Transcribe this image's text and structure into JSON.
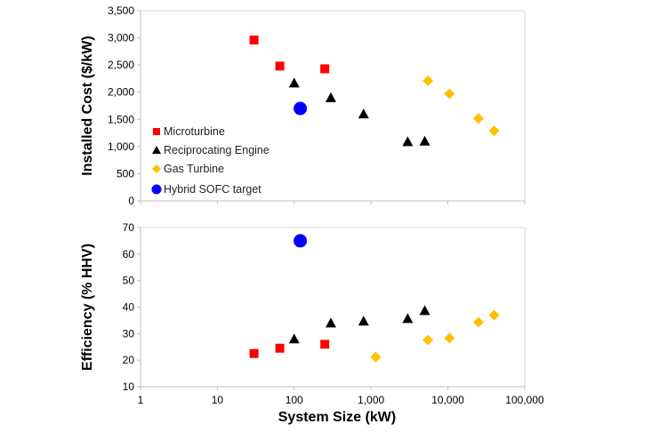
{
  "chart_data": [
    {
      "type": "scatter",
      "title": "",
      "xlabel": "",
      "ylabel": "Installed Cost ($/kW)",
      "xscale": "log",
      "xlim": [
        1,
        100000
      ],
      "ylim": [
        0,
        3500
      ],
      "yticks": [
        0,
        500,
        1000,
        1500,
        2000,
        2500,
        3000,
        3500
      ],
      "ytick_labels": [
        "0",
        "500",
        "1,000",
        "1,500",
        "2,000",
        "2,500",
        "3,000",
        "3,500"
      ],
      "grid": false,
      "legend_position": "bottom-left",
      "series": [
        {
          "name": "Microturbine",
          "marker": "square",
          "color": "#ff0000",
          "points": [
            [
              30,
              2960
            ],
            [
              65,
              2480
            ],
            [
              250,
              2430
            ]
          ]
        },
        {
          "name": "Reciprocating Engine",
          "marker": "triangle",
          "color": "#000000",
          "points": [
            [
              100,
              2170
            ],
            [
              300,
              1900
            ],
            [
              800,
              1600
            ],
            [
              3000,
              1090
            ],
            [
              5000,
              1100
            ]
          ]
        },
        {
          "name": "Gas Turbine",
          "marker": "diamond",
          "color": "#ffc000",
          "points": [
            [
              5500,
              2210
            ],
            [
              10500,
              1970
            ],
            [
              25000,
              1520
            ],
            [
              40000,
              1290
            ]
          ]
        },
        {
          "name": "Hybrid SOFC target",
          "marker": "circle",
          "color": "#0000ff",
          "points": [
            [
              120,
              1700
            ]
          ]
        }
      ]
    },
    {
      "type": "scatter",
      "title": "",
      "xlabel": "System Size (kW)",
      "ylabel": "Efficiency (% HHV)",
      "xscale": "log",
      "xlim": [
        1,
        100000
      ],
      "xticks": [
        1,
        10,
        100,
        1000,
        10000,
        100000
      ],
      "xtick_labels": [
        "1",
        "10",
        "100",
        "1,000",
        "10,000",
        "100,000"
      ],
      "ylim": [
        10,
        70
      ],
      "yticks": [
        10,
        20,
        30,
        40,
        50,
        60,
        70
      ],
      "ytick_labels": [
        "10",
        "20",
        "30",
        "40",
        "50",
        "60",
        "70"
      ],
      "grid": false,
      "series": [
        {
          "name": "Microturbine",
          "marker": "square",
          "color": "#ff0000",
          "points": [
            [
              30,
              22.5
            ],
            [
              65,
              24.5
            ],
            [
              250,
              26
            ]
          ]
        },
        {
          "name": "Reciprocating Engine",
          "marker": "triangle",
          "color": "#000000",
          "points": [
            [
              100,
              28
            ],
            [
              300,
              34
            ],
            [
              800,
              34.7
            ],
            [
              3000,
              35.7
            ],
            [
              5000,
              38.7
            ]
          ]
        },
        {
          "name": "Gas Turbine",
          "marker": "diamond",
          "color": "#ffc000",
          "points": [
            [
              1150,
              21.2
            ],
            [
              5500,
              27.6
            ],
            [
              10500,
              28.3
            ],
            [
              25000,
              34.3
            ],
            [
              40000,
              37
            ]
          ]
        },
        {
          "name": "Hybrid SOFC target",
          "marker": "circle",
          "color": "#0000ff",
          "points": [
            [
              120,
              65
            ]
          ]
        }
      ]
    }
  ]
}
